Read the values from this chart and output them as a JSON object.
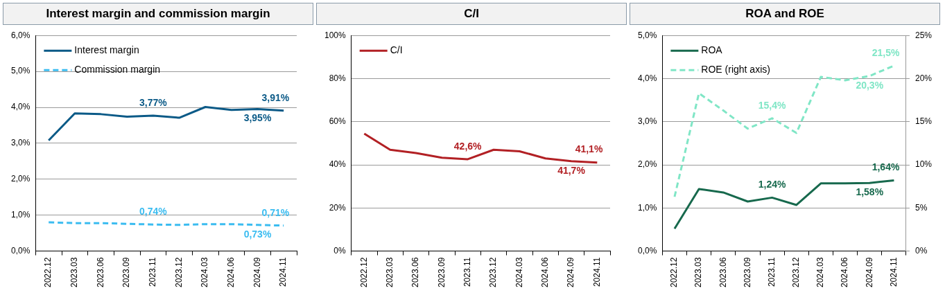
{
  "chart_data": [
    {
      "type": "line",
      "title": "Interest margin and commission margin",
      "categories": [
        "2022.12",
        "2023.03",
        "2023.06",
        "2023.09",
        "2023.11",
        "2023.12",
        "2024.03",
        "2024.06",
        "2024.09",
        "2024.11"
      ],
      "series": [
        {
          "name": "Interest margin",
          "color": "#0b5a87",
          "line_style": "solid",
          "values": [
            3.08,
            3.83,
            3.81,
            3.74,
            3.77,
            3.71,
            4.01,
            3.93,
            3.95,
            3.91
          ],
          "value_labels": [
            null,
            null,
            null,
            null,
            "3,77%",
            null,
            null,
            null,
            "3,95%",
            "3,91%"
          ]
        },
        {
          "name": "Commission margin",
          "color": "#3bbcf0",
          "line_style": "dashed",
          "values": [
            0.8,
            0.78,
            0.78,
            0.76,
            0.74,
            0.73,
            0.75,
            0.75,
            0.73,
            0.71
          ],
          "value_labels": [
            null,
            null,
            null,
            null,
            "0,74%",
            null,
            null,
            null,
            "0,73%",
            "0,71%"
          ]
        }
      ],
      "ylim": [
        0,
        6
      ],
      "yticks": [
        {
          "value": 0,
          "label": "0,0%"
        },
        {
          "value": 1,
          "label": "1,0%"
        },
        {
          "value": 2,
          "label": "2,0%"
        },
        {
          "value": 3,
          "label": "3,0%"
        },
        {
          "value": 4,
          "label": "4,0%"
        },
        {
          "value": 5,
          "label": "5,0%"
        },
        {
          "value": 6,
          "label": "6,0%"
        }
      ],
      "grid": "y",
      "legend": "top left",
      "marker": "none"
    },
    {
      "type": "line",
      "title": "C/I",
      "categories": [
        "2022.12",
        "2023.03",
        "2023.06",
        "2023.09",
        "2023.11",
        "2023.12",
        "2024.03",
        "2024.06",
        "2024.09",
        "2024.11"
      ],
      "series": [
        {
          "name": "C/I",
          "color": "#b22024",
          "line_style": "solid",
          "values": [
            54.5,
            47.0,
            45.5,
            43.3,
            42.6,
            47.0,
            46.3,
            43.0,
            41.7,
            41.1
          ],
          "value_labels": [
            null,
            null,
            null,
            null,
            "42,6%",
            null,
            null,
            null,
            "41,7%",
            "41,1%"
          ]
        }
      ],
      "ylim": [
        0,
        100
      ],
      "yticks": [
        {
          "value": 0,
          "label": "0%"
        },
        {
          "value": 20,
          "label": "20%"
        },
        {
          "value": 40,
          "label": "40%"
        },
        {
          "value": 60,
          "label": "60%"
        },
        {
          "value": 80,
          "label": "80%"
        },
        {
          "value": 100,
          "label": "100%"
        }
      ],
      "grid": "y",
      "legend": "top left",
      "marker": "none"
    },
    {
      "type": "line",
      "title": "ROA and ROE",
      "categories": [
        "2022.12",
        "2023.03",
        "2023.06",
        "2023.09",
        "2023.11",
        "2023.12",
        "2024.03",
        "2024.06",
        "2024.09",
        "2024.11"
      ],
      "series": [
        {
          "name": "ROA",
          "color": "#17694d",
          "line_style": "solid",
          "values": [
            0.52,
            1.44,
            1.36,
            1.15,
            1.24,
            1.07,
            1.57,
            1.57,
            1.58,
            1.64
          ],
          "value_labels": [
            null,
            null,
            null,
            null,
            "1,24%",
            null,
            null,
            null,
            "1,58%",
            "1,64%"
          ]
        },
        {
          "name": "ROE (right axis)",
          "color": "#80e6c6",
          "line_style": "dashed",
          "axis": "y2",
          "values": [
            6.3,
            18.3,
            16.3,
            14.2,
            15.4,
            13.7,
            20.2,
            19.8,
            20.3,
            21.5
          ],
          "value_labels": [
            null,
            null,
            null,
            null,
            "15,4%",
            null,
            null,
            null,
            "20,3%",
            "21,5%"
          ]
        }
      ],
      "ylim": [
        0,
        5
      ],
      "yticks": [
        {
          "value": 0,
          "label": "0,0%"
        },
        {
          "value": 1,
          "label": "1,0%"
        },
        {
          "value": 2,
          "label": "2,0%"
        },
        {
          "value": 3,
          "label": "3,0%"
        },
        {
          "value": 4,
          "label": "4,0%"
        },
        {
          "value": 5,
          "label": "5,0%"
        }
      ],
      "y2lim": [
        0,
        25
      ],
      "y2ticks": [
        {
          "value": 0,
          "label": "0%"
        },
        {
          "value": 5,
          "label": "5%"
        },
        {
          "value": 10,
          "label": "10%"
        },
        {
          "value": 15,
          "label": "15%"
        },
        {
          "value": 20,
          "label": "20%"
        },
        {
          "value": 25,
          "label": "25%"
        }
      ],
      "grid": "y",
      "legend": "top left",
      "marker": "none"
    }
  ]
}
